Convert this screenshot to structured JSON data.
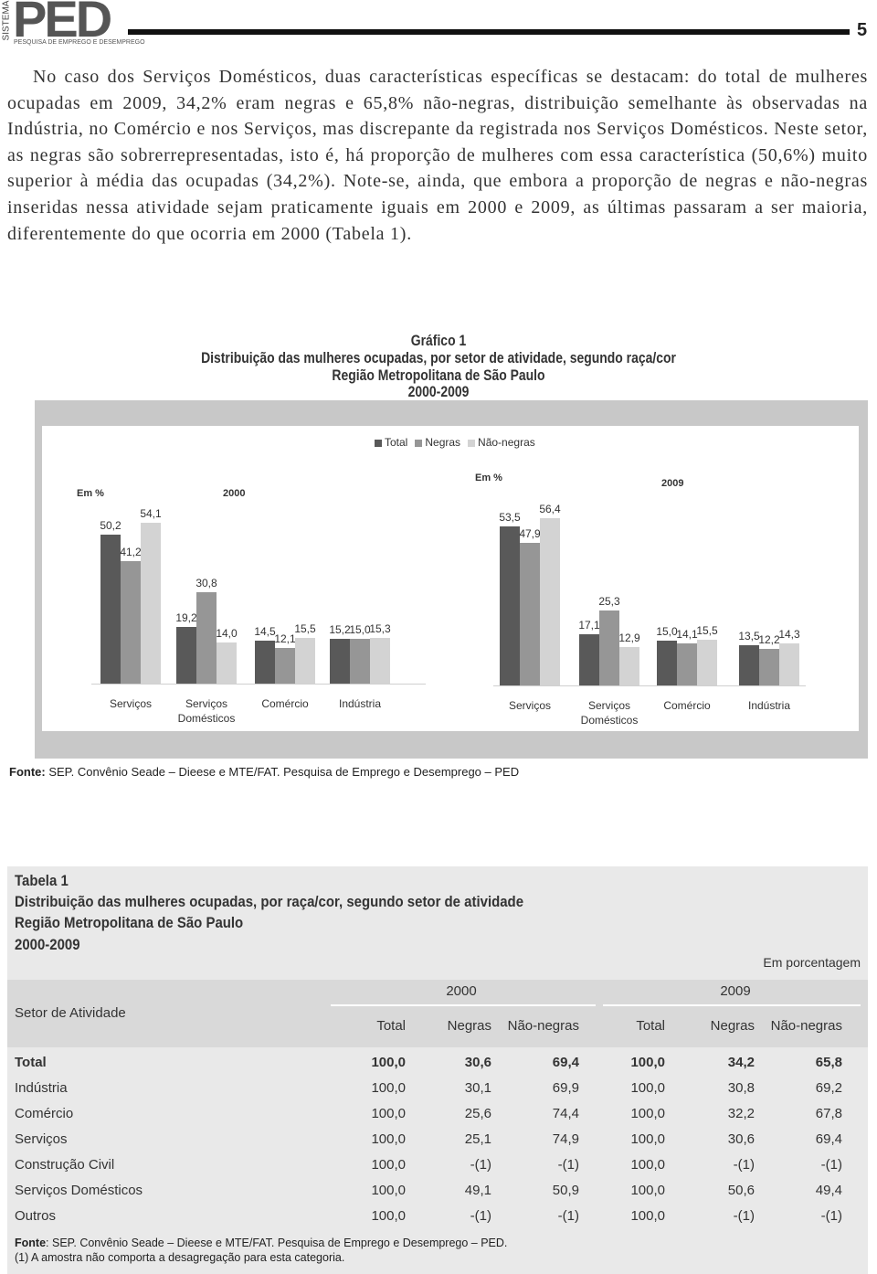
{
  "header": {
    "logo_side": "SISTEMA",
    "logo": "PED",
    "logo_subtitle": "PESQUISA DE EMPREGO E DESEMPREGO",
    "page_number": "5"
  },
  "paragraph": "No caso dos Serviços Domésticos, duas características específicas se destacam: do total de mulheres ocupadas em 2009, 34,2% eram negras e 65,8% não-negras, distribuição semelhante às observadas na Indústria, no Comércio e nos Serviços, mas discrepante da registrada nos Serviços Domésticos. Neste setor, as negras são sobrerrepresentadas, isto é, há proporção de mulheres com essa característica (50,6%) muito superior à média das ocupadas (34,2%). Note-se, ainda, que embora a proporção de negras e não-negras inseridas nessa atividade sejam praticamente iguais em 2000 e 2009, as últimas passaram a ser maioria, diferentemente do que ocorria em 2000 (Tabela 1).",
  "figure": {
    "label": "Gráfico 1",
    "title": "Distribuição das mulheres ocupadas, por setor de atividade, segundo raça/cor",
    "region": "Região Metropolitana de São Paulo",
    "period": "2000-2009",
    "source_label": "Fonte:",
    "source": "SEP. Convênio Seade – Dieese e MTE/FAT. Pesquisa de Emprego e Desemprego – PED"
  },
  "chart_data": [
    {
      "type": "bar",
      "title": "2000",
      "unit": "Em %",
      "categories": [
        "Serviços",
        "Serviços Domésticos",
        "Comércio",
        "Indústria"
      ],
      "series": [
        {
          "name": "Total",
          "color": "#595959",
          "values": [
            50.2,
            19.2,
            14.5,
            15.2
          ],
          "value_labels": [
            "50,2",
            "19,2",
            "14,5",
            "15,2"
          ]
        },
        {
          "name": "Negras",
          "color": "#969696",
          "values": [
            41.2,
            30.8,
            12.1,
            15.0
          ],
          "value_labels": [
            "41,2",
            "30,8",
            "12,1",
            "15,0"
          ]
        },
        {
          "name": "Não-negras",
          "color": "#d3d3d3",
          "values": [
            54.1,
            14.0,
            15.5,
            15.3
          ],
          "value_labels": [
            "54,1",
            "14,0",
            "15,5",
            "15,3"
          ]
        }
      ]
    },
    {
      "type": "bar",
      "title": "2009",
      "unit": "Em %",
      "categories": [
        "Serviços",
        "Serviços Domésticos",
        "Comércio",
        "Indústria"
      ],
      "series": [
        {
          "color": "#595959",
          "values": [
            53.5,
            17.1,
            15.0,
            13.5
          ],
          "value_labels": [
            "53,5",
            "17,1",
            "15,0",
            "13,5"
          ]
        },
        {
          "color": "#969696",
          "values": [
            47.9,
            25.3,
            14.1,
            12.2
          ],
          "value_labels": [
            "47,9",
            "25,3",
            "14,1",
            "12,2"
          ]
        },
        {
          "color": "#d3d3d3",
          "values": [
            56.4,
            12.9,
            15.5,
            14.3
          ],
          "value_labels": [
            "56,4",
            "12,9",
            "15,5",
            "14,3"
          ]
        }
      ]
    }
  ],
  "table": {
    "label": "Tabela 1",
    "title": "Distribuição das mulheres ocupadas, por raça/cor, segundo setor de atividade",
    "region": "Região Metropolitana de São Paulo",
    "period": "2000-2009",
    "unit": "Em porcentagem",
    "row_header": "Setor de Atividade",
    "years": [
      "2000",
      "2009"
    ],
    "columns": [
      "Total",
      "Negras",
      "Não-negras",
      "Total",
      "Negras",
      "Não-negras"
    ],
    "rows": [
      [
        "Total",
        "100,0",
        "30,6",
        "69,4",
        "100,0",
        "34,2",
        "65,8"
      ],
      [
        "Indústria",
        "100,0",
        "30,1",
        "69,9",
        "100,0",
        "30,8",
        "69,2"
      ],
      [
        "Comércio",
        "100,0",
        "25,6",
        "74,4",
        "100,0",
        "32,2",
        "67,8"
      ],
      [
        "Serviços",
        "100,0",
        "25,1",
        "74,9",
        "100,0",
        "30,6",
        "69,4"
      ],
      [
        "Construção Civil",
        "100,0",
        "-(1)",
        "-(1)",
        "100,0",
        "-(1)",
        "-(1)"
      ],
      [
        "Serviços Domésticos",
        "100,0",
        "49,1",
        "50,9",
        "100,0",
        "50,6",
        "49,4"
      ],
      [
        "Outros",
        "100,0",
        "-(1)",
        "-(1)",
        "100,0",
        "-(1)",
        "-(1)"
      ]
    ],
    "source_label": "Fonte",
    "source": ": SEP. Convênio Seade – Dieese e MTE/FAT. Pesquisa de Emprego e Desemprego – PED.",
    "note": "(1) A amostra não comporta a desagregação para esta categoria."
  }
}
